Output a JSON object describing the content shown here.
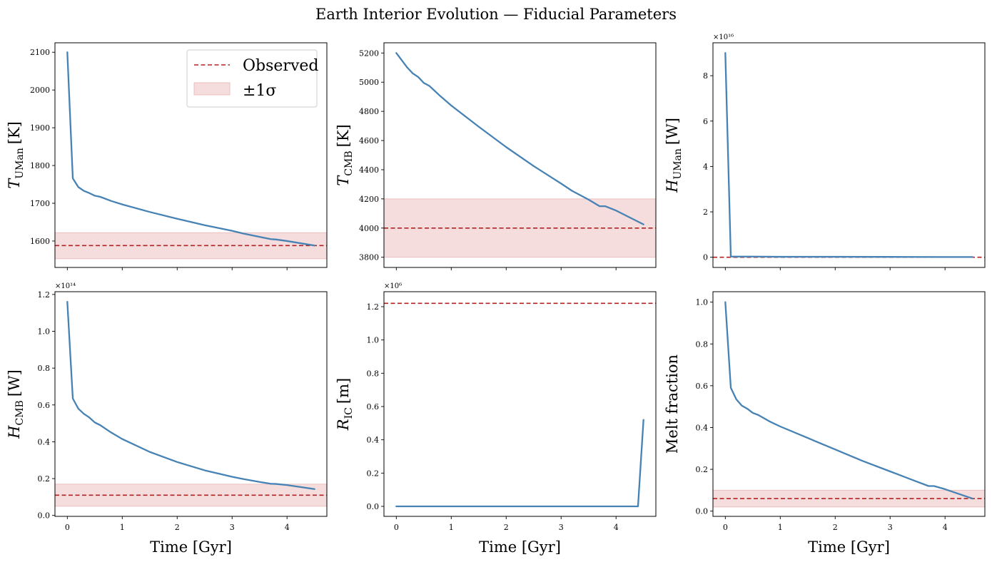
{
  "figure": {
    "title": "Earth Interior Evolution — Fiducial Parameters",
    "xlabel": "Time [Gyr]",
    "colors": {
      "line": "#4682b4",
      "observed": "#b22222",
      "band": "#e8b4b4"
    }
  },
  "legend": {
    "observed": "Observed",
    "sigma": "±1σ"
  },
  "chart_data": [
    {
      "type": "line",
      "ylabel_main": "T",
      "ylabel_sub": "UMan",
      "ylabel_unit": "[K]",
      "xlim": [
        -0.225,
        4.725
      ],
      "ylim": [
        1530,
        2125
      ],
      "xticks": [
        0,
        1,
        2,
        3,
        4
      ],
      "yticks": [
        1600,
        1700,
        1800,
        1900,
        2000,
        2100
      ],
      "ytick_labels": [
        "1600",
        "1700",
        "1800",
        "1900",
        "2000",
        "2100"
      ],
      "offset_text": "",
      "observed": 1588,
      "band": [
        1553,
        1622
      ],
      "legend": true,
      "x": [
        0,
        0.1,
        0.2,
        0.3,
        0.4,
        0.5,
        0.6,
        0.8,
        1.0,
        1.5,
        2.0,
        2.5,
        3.0,
        3.2,
        3.5,
        3.7,
        3.8,
        4.0,
        4.5
      ],
      "y": [
        2100,
        1766,
        1743,
        1733,
        1727,
        1720,
        1717,
        1706,
        1697,
        1677,
        1659,
        1642,
        1627,
        1620,
        1611,
        1605,
        1604,
        1600,
        1588
      ]
    },
    {
      "type": "line",
      "ylabel_main": "T",
      "ylabel_sub": "CMB",
      "ylabel_unit": "[K]",
      "xlim": [
        -0.225,
        4.725
      ],
      "ylim": [
        3730,
        5270
      ],
      "xticks": [
        0,
        1,
        2,
        3,
        4
      ],
      "yticks": [
        3800,
        4000,
        4200,
        4400,
        4600,
        4800,
        5000,
        5200
      ],
      "ytick_labels": [
        "3800",
        "4000",
        "4200",
        "4400",
        "4600",
        "4800",
        "5000",
        "5200"
      ],
      "offset_text": "",
      "observed": 4000,
      "band": [
        3800,
        4200
      ],
      "legend": false,
      "x": [
        0,
        0.1,
        0.2,
        0.3,
        0.4,
        0.5,
        0.6,
        0.8,
        1.0,
        1.5,
        2.0,
        2.5,
        3.0,
        3.2,
        3.5,
        3.7,
        3.8,
        4.0,
        4.5
      ],
      "y": [
        5200,
        5150,
        5100,
        5060,
        5035,
        4995,
        4975,
        4905,
        4840,
        4695,
        4555,
        4425,
        4305,
        4255,
        4195,
        4150,
        4150,
        4120,
        4025
      ]
    },
    {
      "type": "line",
      "ylabel_main": "H",
      "ylabel_sub": "UMan",
      "ylabel_unit": "[W]",
      "xlim": [
        -0.225,
        4.725
      ],
      "ylim": [
        -0.45,
        9.45
      ],
      "xticks": [
        0,
        1,
        2,
        3,
        4
      ],
      "yticks": [
        0,
        2,
        4,
        6,
        8
      ],
      "ytick_labels": [
        "0",
        "2",
        "4",
        "6",
        "8"
      ],
      "offset_text": "×10¹⁶",
      "observed": 0,
      "band": [
        0,
        0
      ],
      "legend": false,
      "x": [
        0,
        0.1,
        0.2,
        0.5,
        1.0,
        2.0,
        3.0,
        4.0,
        4.5
      ],
      "y": [
        9.0,
        0.03,
        0.03,
        0.03,
        0.02,
        0.02,
        0.015,
        0.01,
        0.01
      ]
    },
    {
      "type": "line",
      "ylabel_main": "H",
      "ylabel_sub": "CMB",
      "ylabel_unit": "[W]",
      "xlim": [
        -0.225,
        4.725
      ],
      "ylim": [
        -0.005,
        1.215
      ],
      "xticks": [
        0,
        1,
        2,
        3,
        4
      ],
      "yticks": [
        0.0,
        0.2,
        0.4,
        0.6,
        0.8,
        1.0,
        1.2
      ],
      "ytick_labels": [
        "0.0",
        "0.2",
        "0.4",
        "0.6",
        "0.8",
        "1.0",
        "1.2"
      ],
      "offset_text": "×10¹⁴",
      "observed": 0.11,
      "band": [
        0.05,
        0.17
      ],
      "legend": false,
      "x": [
        0,
        0.1,
        0.2,
        0.3,
        0.4,
        0.5,
        0.6,
        0.8,
        1.0,
        1.5,
        2.0,
        2.5,
        3.0,
        3.2,
        3.5,
        3.7,
        3.8,
        4.0,
        4.5
      ],
      "y": [
        1.16,
        0.635,
        0.58,
        0.552,
        0.532,
        0.505,
        0.49,
        0.45,
        0.415,
        0.345,
        0.29,
        0.245,
        0.21,
        0.198,
        0.182,
        0.172,
        0.171,
        0.165,
        0.143
      ]
    },
    {
      "type": "line",
      "ylabel_main": "R",
      "ylabel_sub": "IC",
      "ylabel_unit": "[m]",
      "xlim": [
        -0.225,
        4.725
      ],
      "ylim": [
        -0.06,
        1.29
      ],
      "xticks": [
        0,
        1,
        2,
        3,
        4
      ],
      "yticks": [
        0.0,
        0.2,
        0.4,
        0.6,
        0.8,
        1.0,
        1.2
      ],
      "ytick_labels": [
        "0.0",
        "0.2",
        "0.4",
        "0.6",
        "0.8",
        "1.0",
        "1.2"
      ],
      "offset_text": "×10⁶",
      "observed": 1.22,
      "band": [
        1.22,
        1.22
      ],
      "legend": false,
      "x": [
        0,
        1,
        2,
        3,
        4,
        4.4,
        4.5
      ],
      "y": [
        0,
        0,
        0,
        0,
        0,
        0,
        0.52
      ]
    },
    {
      "type": "line",
      "ylabel_main": "Melt fraction",
      "ylabel_sub": "",
      "ylabel_unit": "",
      "xlim": [
        -0.225,
        4.725
      ],
      "ylim": [
        -0.025,
        1.05
      ],
      "xticks": [
        0,
        1,
        2,
        3,
        4
      ],
      "yticks": [
        0.0,
        0.2,
        0.4,
        0.6,
        0.8,
        1.0
      ],
      "ytick_labels": [
        "0.0",
        "0.2",
        "0.4",
        "0.6",
        "0.8",
        "1.0"
      ],
      "offset_text": "",
      "observed": 0.06,
      "band": [
        0.02,
        0.1
      ],
      "legend": false,
      "x": [
        0,
        0.1,
        0.2,
        0.3,
        0.4,
        0.5,
        0.6,
        0.8,
        1.0,
        1.5,
        2.0,
        2.5,
        3.0,
        3.2,
        3.5,
        3.7,
        3.8,
        4.0,
        4.5
      ],
      "y": [
        1.0,
        0.59,
        0.535,
        0.505,
        0.49,
        0.47,
        0.46,
        0.43,
        0.405,
        0.35,
        0.295,
        0.24,
        0.19,
        0.17,
        0.14,
        0.12,
        0.12,
        0.105,
        0.06
      ]
    }
  ]
}
